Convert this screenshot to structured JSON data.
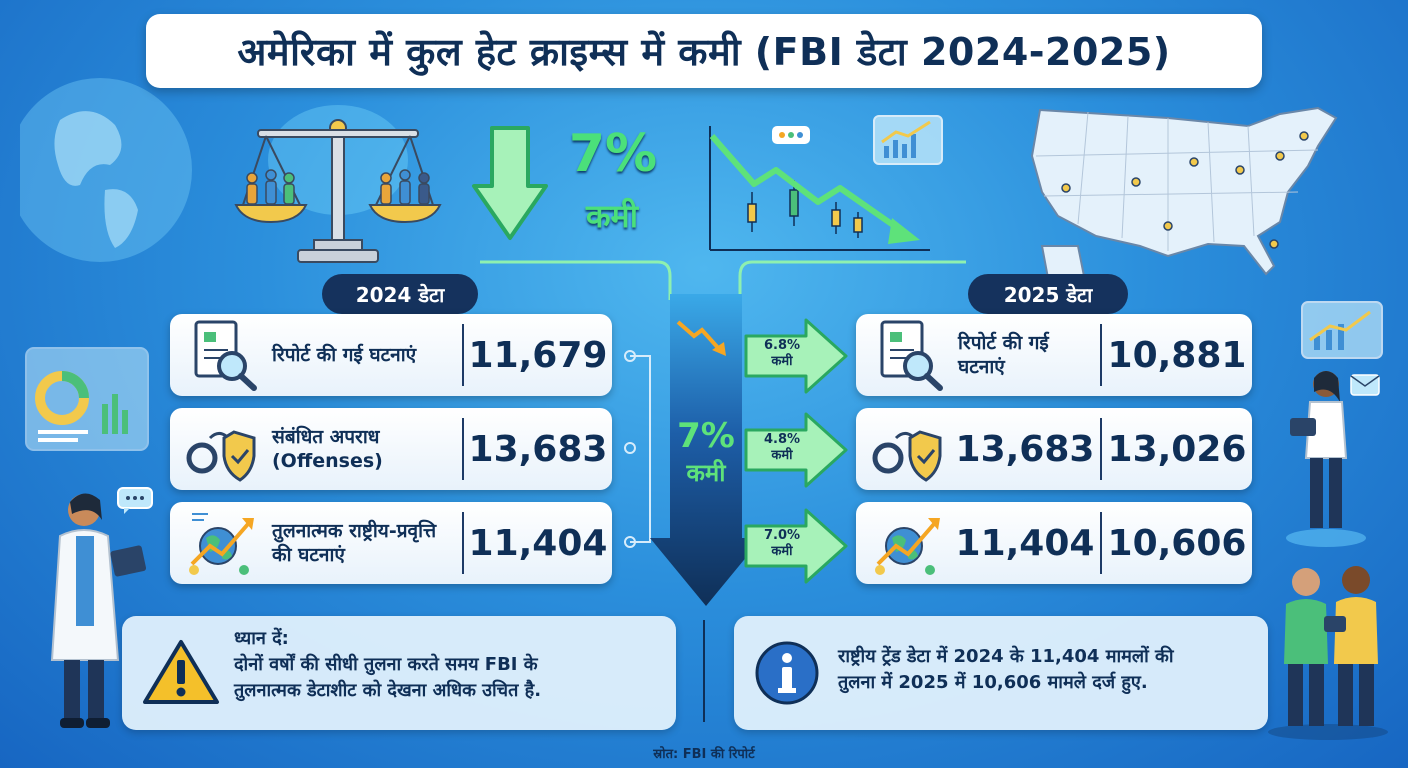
{
  "title": "अमेरिका में कुल हेट क्राइम्स में कमी (FBI डेटा 2024-2025)",
  "headline": {
    "percent": "7%",
    "word": "कमी"
  },
  "center_arrow": {
    "percent": "7%",
    "word": "कमी"
  },
  "left": {
    "badge": "2024 डेटा",
    "rows": [
      {
        "label": "रिपोर्ट की गई घटनाएं",
        "value": "11,679",
        "icon": "report-magnifier-icon"
      },
      {
        "label": "संबंधित अपराध (Offenses)",
        "value": "13,683",
        "icon": "handcuffs-shield-icon"
      },
      {
        "label": "तुलनात्मक राष्ट्रीय-प्रवृत्ति की घटनाएं",
        "value": "11,404",
        "icon": "globe-trend-icon"
      }
    ]
  },
  "right": {
    "badge": "2025 डेटा",
    "rows": [
      {
        "label": "रिपोर्ट की गई घटनाएं",
        "value": "10,881",
        "icon": "report-magnifier-icon"
      },
      {
        "prev": "13,683",
        "value": "13,026",
        "icon": "handcuffs-shield-icon"
      },
      {
        "prev": "11,404",
        "value": "10,606",
        "icon": "globe-trend-icon"
      }
    ]
  },
  "changes": [
    {
      "pct": "6.8%",
      "word": "कमी"
    },
    {
      "pct": "4.8%",
      "word": "कमी"
    },
    {
      "pct": "7.0%",
      "word": "कमी"
    }
  ],
  "notes": {
    "warning_heading": "ध्यान दें:",
    "warning_line1": "दोनों वर्षों की सीधी तुलना करते समय FBI के",
    "warning_line2": "तुलनात्मक डेटाशीट को देखना अधिक उचित है.",
    "info_line1": "राष्ट्रीय ट्रेंड डेटा में 2024 के 11,404 मामलों की",
    "info_line2": "तुलना में 2025 में 10,606 मामले दर्ज हुए."
  },
  "source": "स्रोत: FBI की रिपोर्ट",
  "colors": {
    "navy": "#0f2f57",
    "green": "#5ee27a",
    "bg": "#2b8fdc",
    "warning": "#f4c02a",
    "info": "#2a6fc7"
  }
}
